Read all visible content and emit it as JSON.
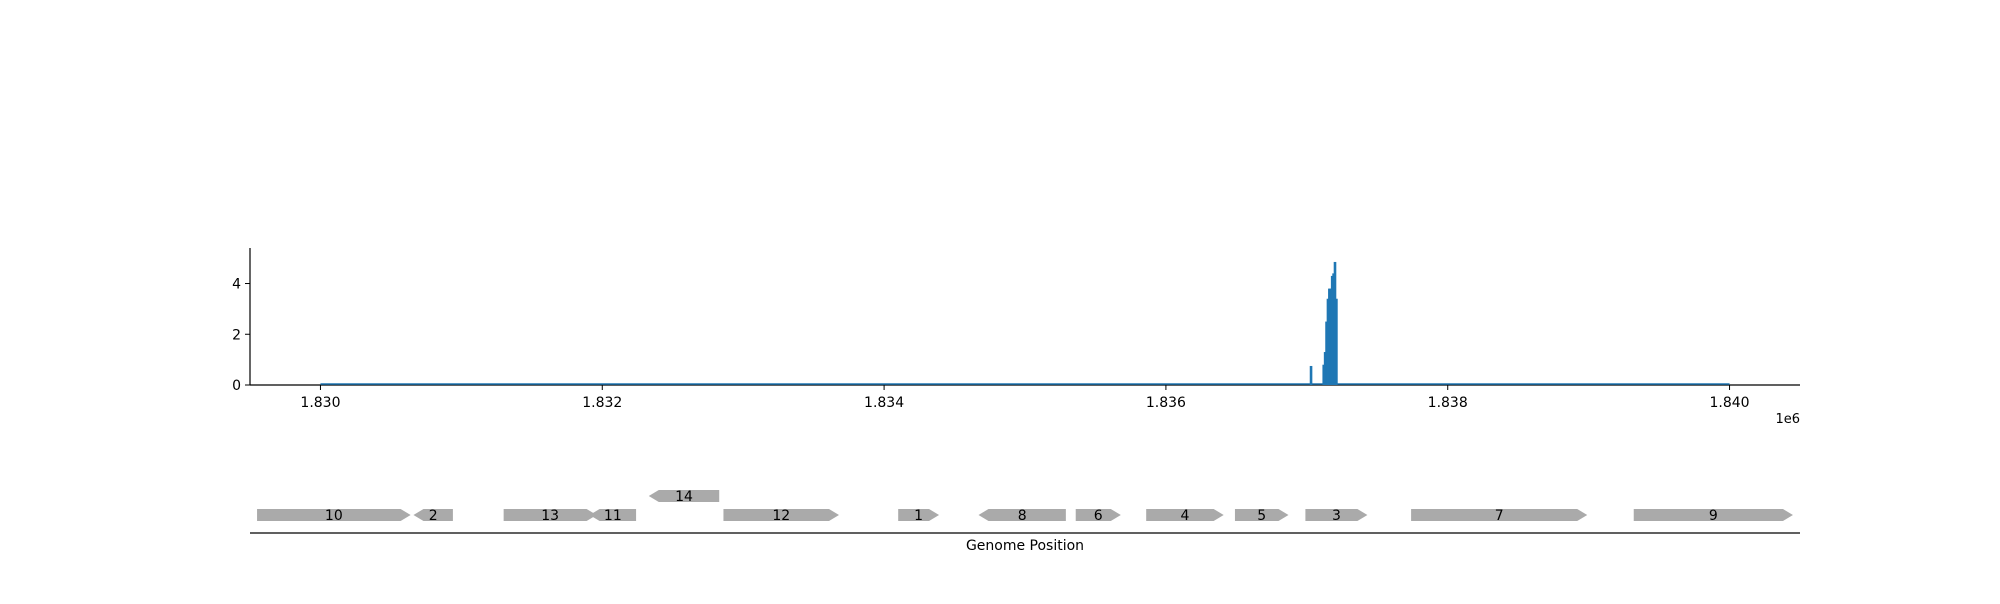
{
  "chart_data": [
    {
      "type": "bar",
      "title": "",
      "xlabel": "",
      "ylabel": "",
      "x_multiplier": "1e6",
      "xlim": [
        1.8295,
        1.8405
      ],
      "ylim": [
        0,
        5.4
      ],
      "x_ticks": [
        1.83,
        1.832,
        1.834,
        1.836,
        1.838,
        1.84
      ],
      "x_tick_labels": [
        "1.830",
        "1.832",
        "1.834",
        "1.836",
        "1.838",
        "1.840"
      ],
      "y_ticks": [
        0,
        2,
        4
      ],
      "y_tick_labels": [
        "0",
        "2",
        "4"
      ],
      "baseline": [
        1.83,
        1.84
      ],
      "color": "#1f77b4",
      "grid": false,
      "x": [
        1.83703,
        1.83712,
        1.83713,
        1.83714,
        1.83715,
        1.83716,
        1.83717,
        1.83718,
        1.83719,
        1.8372,
        1.83721
      ],
      "values": [
        0.75,
        0.8,
        1.3,
        2.5,
        3.4,
        3.8,
        3.8,
        4.3,
        4.4,
        4.85,
        3.4
      ]
    },
    {
      "type": "gene-track",
      "xlabel": "Genome Position",
      "color": "#aaaaaa",
      "genes": [
        {
          "label": "10",
          "start": 1.82955,
          "end": 1.83064,
          "strand": "+",
          "row": 0
        },
        {
          "label": "2",
          "start": 1.83066,
          "end": 1.83094,
          "strand": "-",
          "row": 0
        },
        {
          "label": "13",
          "start": 1.8313,
          "end": 1.83196,
          "strand": "+",
          "row": 0
        },
        {
          "label": "11",
          "start": 1.83191,
          "end": 1.83224,
          "strand": "-",
          "row": 0
        },
        {
          "label": "14",
          "start": 1.83233,
          "end": 1.83283,
          "strand": "-",
          "row": 1
        },
        {
          "label": "12",
          "start": 1.83286,
          "end": 1.83368,
          "strand": "+",
          "row": 0
        },
        {
          "label": "1",
          "start": 1.8341,
          "end": 1.83439,
          "strand": "+",
          "row": 0
        },
        {
          "label": "8",
          "start": 1.83467,
          "end": 1.83529,
          "strand": "-",
          "row": 0
        },
        {
          "label": "6",
          "start": 1.83536,
          "end": 1.83568,
          "strand": "+",
          "row": 0
        },
        {
          "label": "4",
          "start": 1.83586,
          "end": 1.83641,
          "strand": "+",
          "row": 0
        },
        {
          "label": "5",
          "start": 1.83649,
          "end": 1.83687,
          "strand": "+",
          "row": 0
        },
        {
          "label": "3",
          "start": 1.83699,
          "end": 1.83743,
          "strand": "+",
          "row": 0
        },
        {
          "label": "7",
          "start": 1.83774,
          "end": 1.83899,
          "strand": "+",
          "row": 0
        },
        {
          "label": "9",
          "start": 1.83932,
          "end": 1.84045,
          "strand": "+",
          "row": 0
        }
      ]
    }
  ]
}
